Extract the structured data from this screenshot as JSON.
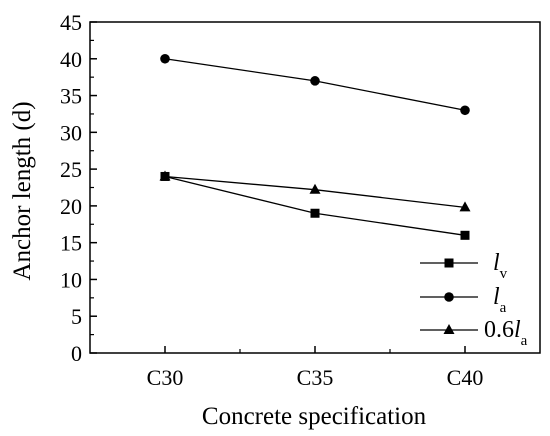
{
  "chart_data": {
    "type": "line",
    "categories": [
      "C30",
      "C35",
      "C40"
    ],
    "series": [
      {
        "name": "lv",
        "legend": {
          "prefix": "",
          "main": "l",
          "sub": "v"
        },
        "marker": "square",
        "values": [
          24,
          19,
          16
        ]
      },
      {
        "name": "la",
        "legend": {
          "prefix": "",
          "main": "l",
          "sub": "a"
        },
        "marker": "circle",
        "values": [
          40,
          37,
          33
        ]
      },
      {
        "name": "0.6la",
        "legend": {
          "prefix": "0.6",
          "main": "l",
          "sub": "a"
        },
        "marker": "triangle",
        "values": [
          24,
          22.2,
          19.8
        ]
      }
    ],
    "xlabel": "Concrete specification",
    "ylabel": "Anchor length (d)",
    "ylim": [
      0,
      45
    ],
    "yticks": [
      0,
      5,
      10,
      15,
      20,
      25,
      30,
      35,
      40,
      45
    ],
    "grid": false,
    "legend_position": "bottom-right",
    "colors": {
      "line": "#000000",
      "background": "#ffffff"
    }
  }
}
